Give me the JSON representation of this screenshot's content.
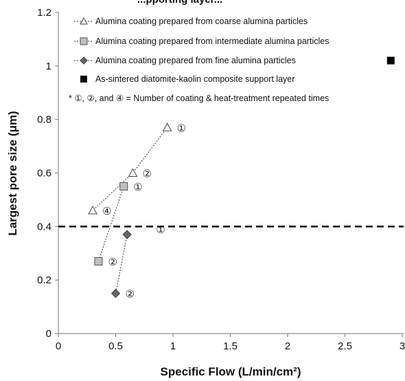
{
  "chart_data": {
    "type": "scatter",
    "title_fragment": "...pporting layer...",
    "xlabel": "Specific Flow (L/min/cm²)",
    "ylabel": "Largest pore size (μm)",
    "xlim": [
      0,
      3
    ],
    "ylim": [
      0,
      1.2
    ],
    "x_ticks": [
      "0",
      "0.5",
      "1",
      "1.5",
      "2",
      "2.5",
      "3"
    ],
    "y_ticks": [
      "0",
      "0.2",
      "0.4",
      "0.6",
      "0.8",
      "1",
      "1.2"
    ],
    "threshold_y": 0.4,
    "series": [
      {
        "name": "Alumina coating prepared from coarse alumina particles",
        "marker": "triangle",
        "color": "#ffffff",
        "points": [
          {
            "x": 0.95,
            "y": 0.77,
            "label": "①"
          },
          {
            "x": 0.65,
            "y": 0.6,
            "label": "②"
          },
          {
            "x": 0.3,
            "y": 0.46,
            "label": "④"
          }
        ]
      },
      {
        "name": "Alumina coating prepared from intermediate alumina particles",
        "marker": "square",
        "color": "#bfbfbf",
        "points": [
          {
            "x": 0.57,
            "y": 0.55,
            "label": "①"
          },
          {
            "x": 0.35,
            "y": 0.27,
            "label": "②"
          }
        ]
      },
      {
        "name": "Alumina coating prepared from fine alumina particles",
        "marker": "diamond",
        "color": "#666666",
        "points": [
          {
            "x": 0.6,
            "y": 0.37,
            "label": "①"
          },
          {
            "x": 0.5,
            "y": 0.15,
            "label": "②"
          }
        ]
      },
      {
        "name": "As-sintered diatomite-kaolin composite support layer",
        "marker": "filled-square",
        "color": "#000000",
        "points": [
          {
            "x": 2.9,
            "y": 1.02
          }
        ]
      }
    ],
    "note": "* ①, ②, and ④ = Number of coating & heat-treatment repeated times",
    "legend_position": "top-left",
    "grid": false
  }
}
